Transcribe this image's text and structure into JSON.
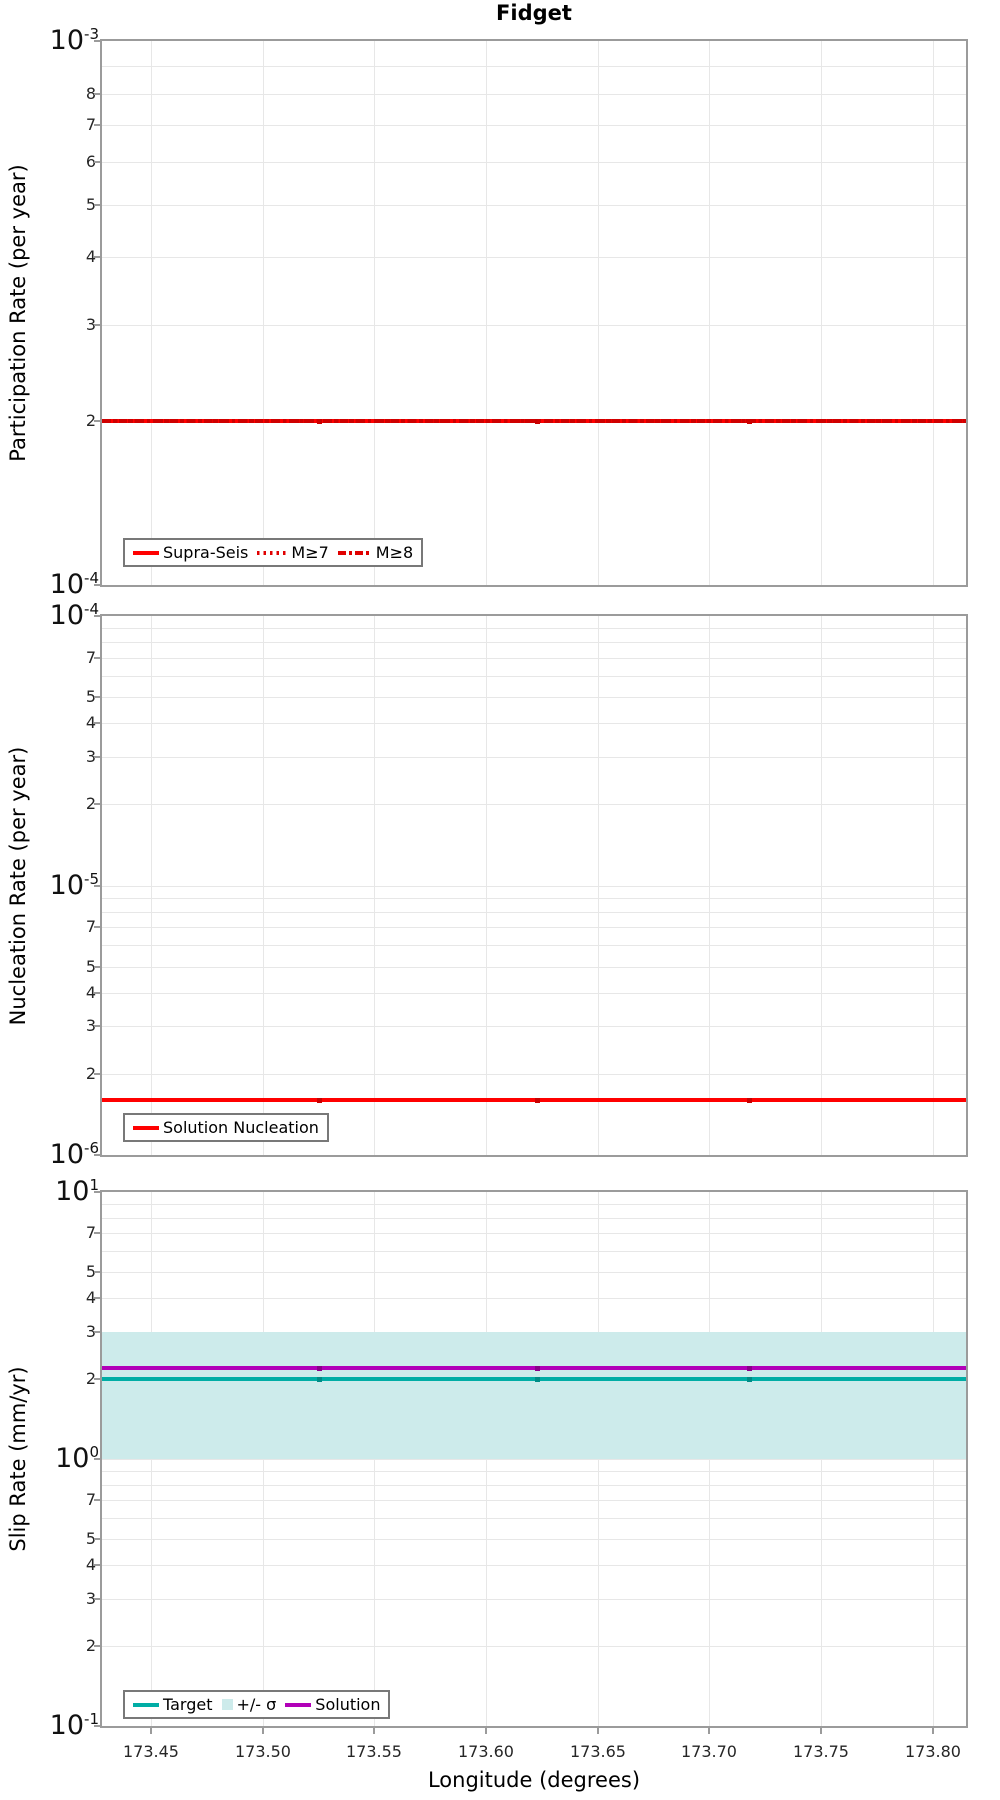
{
  "title": "Fidget",
  "x_axis": {
    "label": "Longitude (degrees)",
    "tick_labels": [
      "173.45",
      "173.50",
      "173.55",
      "173.60",
      "173.65",
      "173.70",
      "173.75",
      "173.80"
    ],
    "tick_values": [
      173.45,
      173.5,
      173.55,
      173.6,
      173.65,
      173.7,
      173.75,
      173.8
    ],
    "range": [
      173.428,
      173.815
    ]
  },
  "x_points": [
    173.43,
    173.525,
    173.623,
    173.718,
    173.815
  ],
  "chart_data": [
    {
      "type": "line",
      "title": "Fidget",
      "ylabel": "Participation Rate (per year)",
      "yscale": "log",
      "ylim_exp": [
        -4,
        -3
      ],
      "ytick_decades": [
        -3,
        -4
      ],
      "ytick_labeled_mantissas": [
        8,
        7,
        6,
        5,
        4,
        3,
        2
      ],
      "grid": true,
      "series": [
        {
          "name": "Supra-Seis",
          "style": "solid",
          "color": "#ff0000",
          "marker_color": "#c80000",
          "values": [
            0.0002,
            0.0002,
            0.0002,
            0.0002,
            0.0002
          ]
        },
        {
          "name": "M≥7",
          "style": "dotted",
          "color": "#cf0000",
          "marker_color": "#c80000",
          "values": [
            0.0002,
            0.0002,
            0.0002,
            0.0002,
            0.0002
          ]
        },
        {
          "name": "M≥8",
          "style": "dashdot",
          "color": "#cf0000",
          "marker_color": "#c80000",
          "values": [
            0.0002,
            0.0002,
            0.0002,
            0.0002,
            0.0002
          ]
        }
      ],
      "legend": [
        {
          "label": "Supra-Seis",
          "swatch": "solid",
          "color": "#ff0000"
        },
        {
          "label": "M≥7",
          "swatch": "dotted",
          "color": "#e00000"
        },
        {
          "label": "M≥8",
          "swatch": "dashdot",
          "color": "#e00000"
        }
      ],
      "legend_position": "bottom-left"
    },
    {
      "type": "line",
      "ylabel": "Nucleation Rate (per year)",
      "yscale": "log",
      "ylim_exp": [
        -6,
        -4
      ],
      "ytick_decades": [
        -4,
        -5,
        -6
      ],
      "ytick_labeled_mantissas": [
        7,
        5,
        4,
        3,
        2
      ],
      "grid": true,
      "series": [
        {
          "name": "Solution Nucleation",
          "style": "solid",
          "color": "#ff0000",
          "marker_color": "#c80000",
          "values": [
            1.6e-06,
            1.6e-06,
            1.6e-06,
            1.6e-06,
            1.6e-06
          ]
        }
      ],
      "legend": [
        {
          "label": "Solution Nucleation",
          "swatch": "solid",
          "color": "#ff0000"
        }
      ],
      "legend_position": "bottom-left"
    },
    {
      "type": "line",
      "ylabel": "Slip Rate (mm/yr)",
      "yscale": "log",
      "ylim_exp": [
        -1,
        1
      ],
      "ytick_decades": [
        1,
        0,
        -1
      ],
      "ytick_labeled_mantissas": [
        7,
        5,
        4,
        3,
        2
      ],
      "grid": true,
      "band": {
        "name": "+/- σ",
        "color": "#cdebeb",
        "low": 1.0,
        "high": 3.0
      },
      "series": [
        {
          "name": "Target",
          "style": "solid",
          "color": "#00ada5",
          "marker_color": "#008c86",
          "values": [
            2.0,
            2.0,
            2.0,
            2.0,
            2.0
          ]
        },
        {
          "name": "Solution",
          "style": "solid",
          "color": "#b100b8",
          "marker_color": "#8b008b",
          "values": [
            2.2,
            2.2,
            2.2,
            2.2,
            2.2
          ]
        }
      ],
      "legend": [
        {
          "label": "Target",
          "swatch": "solid",
          "color": "#00ada5"
        },
        {
          "label": "+/- σ",
          "swatch": "patch",
          "color": "#cdebeb"
        },
        {
          "label": "Solution",
          "swatch": "solid",
          "color": "#b100b8"
        }
      ],
      "legend_position": "bottom-left"
    }
  ]
}
